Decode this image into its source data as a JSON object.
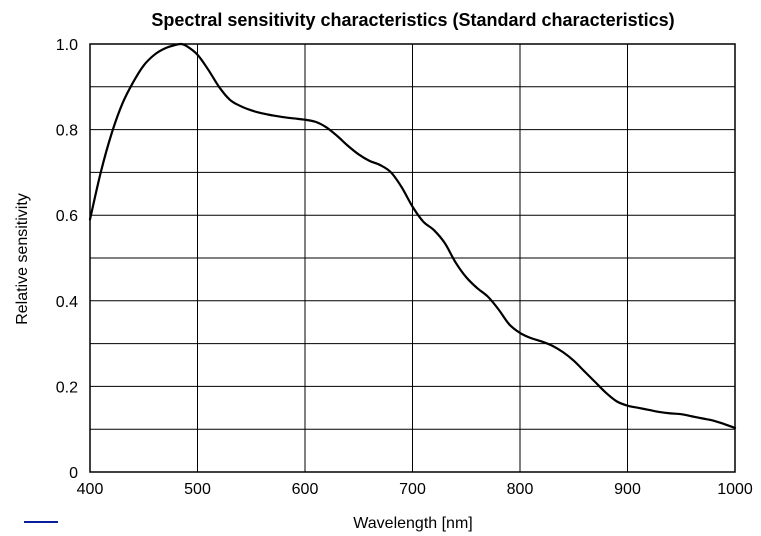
{
  "chart_data": {
    "type": "line",
    "title": "Spectral sensitivity characteristics (Standard characteristics)",
    "xlabel": "Wavelength [nm]",
    "ylabel": "Relative sensitivity",
    "xlim": [
      400,
      1000
    ],
    "ylim": [
      0,
      1.0
    ],
    "x_ticks": [
      400,
      500,
      600,
      700,
      800,
      900,
      1000
    ],
    "x_tick_labels": [
      "400",
      "500",
      "600",
      "700",
      "800",
      "900",
      "1000"
    ],
    "y_ticks": [
      0,
      0.2,
      0.4,
      0.6,
      0.8,
      1.0
    ],
    "y_tick_labels": [
      "0",
      "0.2",
      "0.4",
      "0.6",
      "0.8",
      "1.0"
    ],
    "grid": true,
    "y_minor_grid_step": 0.1,
    "series": [
      {
        "color": "#000000",
        "x": [
          400,
          410,
          420,
          430,
          440,
          450,
          460,
          470,
          480,
          485,
          490,
          500,
          510,
          520,
          530,
          540,
          550,
          560,
          570,
          580,
          590,
          600,
          610,
          620,
          630,
          640,
          650,
          660,
          670,
          680,
          690,
          700,
          710,
          720,
          730,
          740,
          750,
          760,
          770,
          780,
          790,
          800,
          810,
          820,
          830,
          840,
          850,
          860,
          870,
          880,
          890,
          900,
          910,
          920,
          930,
          940,
          950,
          960,
          970,
          980,
          990,
          1000
        ],
        "y": [
          0.59,
          0.7,
          0.79,
          0.86,
          0.91,
          0.95,
          0.975,
          0.99,
          0.998,
          1.0,
          0.995,
          0.975,
          0.94,
          0.9,
          0.87,
          0.855,
          0.845,
          0.838,
          0.833,
          0.829,
          0.826,
          0.823,
          0.818,
          0.805,
          0.785,
          0.762,
          0.742,
          0.727,
          0.717,
          0.7,
          0.665,
          0.62,
          0.585,
          0.565,
          0.535,
          0.49,
          0.455,
          0.43,
          0.41,
          0.38,
          0.345,
          0.325,
          0.313,
          0.305,
          0.295,
          0.28,
          0.26,
          0.235,
          0.21,
          0.185,
          0.165,
          0.155,
          0.15,
          0.145,
          0.14,
          0.137,
          0.135,
          0.13,
          0.125,
          0.12,
          0.112,
          0.103
        ]
      }
    ]
  }
}
